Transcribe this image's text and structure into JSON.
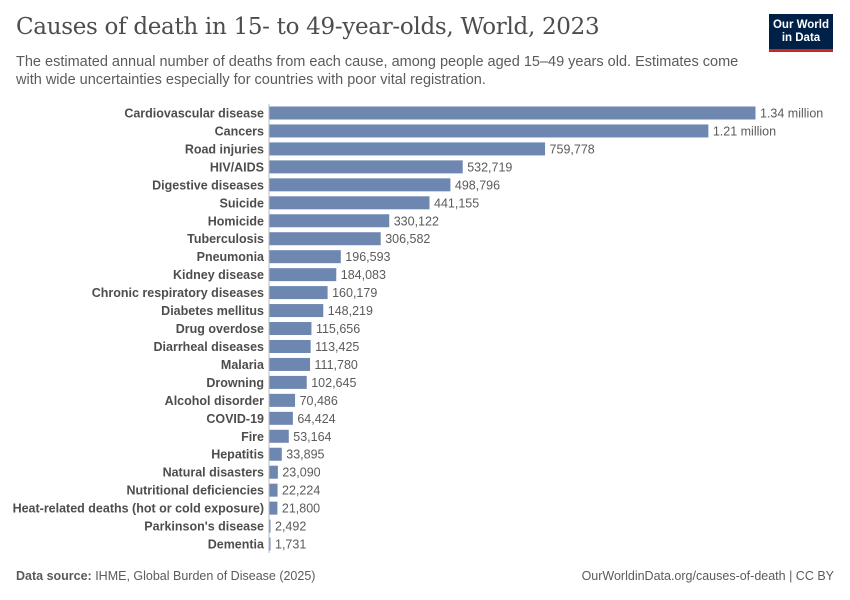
{
  "header": {
    "title": "Causes of death in 15- to 49-year-olds, World, 2023",
    "subtitle": "The estimated annual number of deaths from each cause, among people aged 15–49 years old. Estimates come with wide uncertainties especially for countries with poor vital registration.",
    "logo": "Our World in Data"
  },
  "footer": {
    "source_label": "Data source:",
    "source": " IHME, Global Burden of Disease (2025)",
    "url": "OurWorldinData.org/causes-of-death | CC BY"
  },
  "colors": {
    "bar": "#6d87b1",
    "logo_bg": "#002147",
    "logo_accent": "#ce261e"
  },
  "chart_data": {
    "type": "bar",
    "orientation": "horizontal",
    "title": "Causes of death in 15- to 49-year-olds, World, 2023",
    "categories": [
      "Cardiovascular disease",
      "Cancers",
      "Road injuries",
      "HIV/AIDS",
      "Digestive diseases",
      "Suicide",
      "Homicide",
      "Tuberculosis",
      "Pneumonia",
      "Kidney disease",
      "Chronic respiratory diseases",
      "Diabetes mellitus",
      "Drug overdose",
      "Diarrheal diseases",
      "Malaria",
      "Drowning",
      "Alcohol disorder",
      "COVID-19",
      "Fire",
      "Hepatitis",
      "Natural disasters",
      "Nutritional deficiencies",
      "Heat-related deaths (hot or cold exposure)",
      "Parkinson's disease",
      "Dementia"
    ],
    "values": [
      1340000,
      1210000,
      759778,
      532719,
      498796,
      441155,
      330122,
      306582,
      196593,
      184083,
      160179,
      148219,
      115656,
      113425,
      111780,
      102645,
      70486,
      64424,
      53164,
      33895,
      23090,
      22224,
      21800,
      2492,
      1731
    ],
    "value_labels": [
      "1.34 million",
      "1.21 million",
      "759,778",
      "532,719",
      "498,796",
      "441,155",
      "330,122",
      "306,582",
      "196,593",
      "184,083",
      "160,179",
      "148,219",
      "115,656",
      "113,425",
      "111,780",
      "102,645",
      "70,486",
      "64,424",
      "53,164",
      "33,895",
      "23,090",
      "22,224",
      "21,800",
      "2,492",
      "1,731"
    ],
    "xlim": [
      0,
      1340000
    ],
    "grid": false,
    "legend": "none"
  }
}
